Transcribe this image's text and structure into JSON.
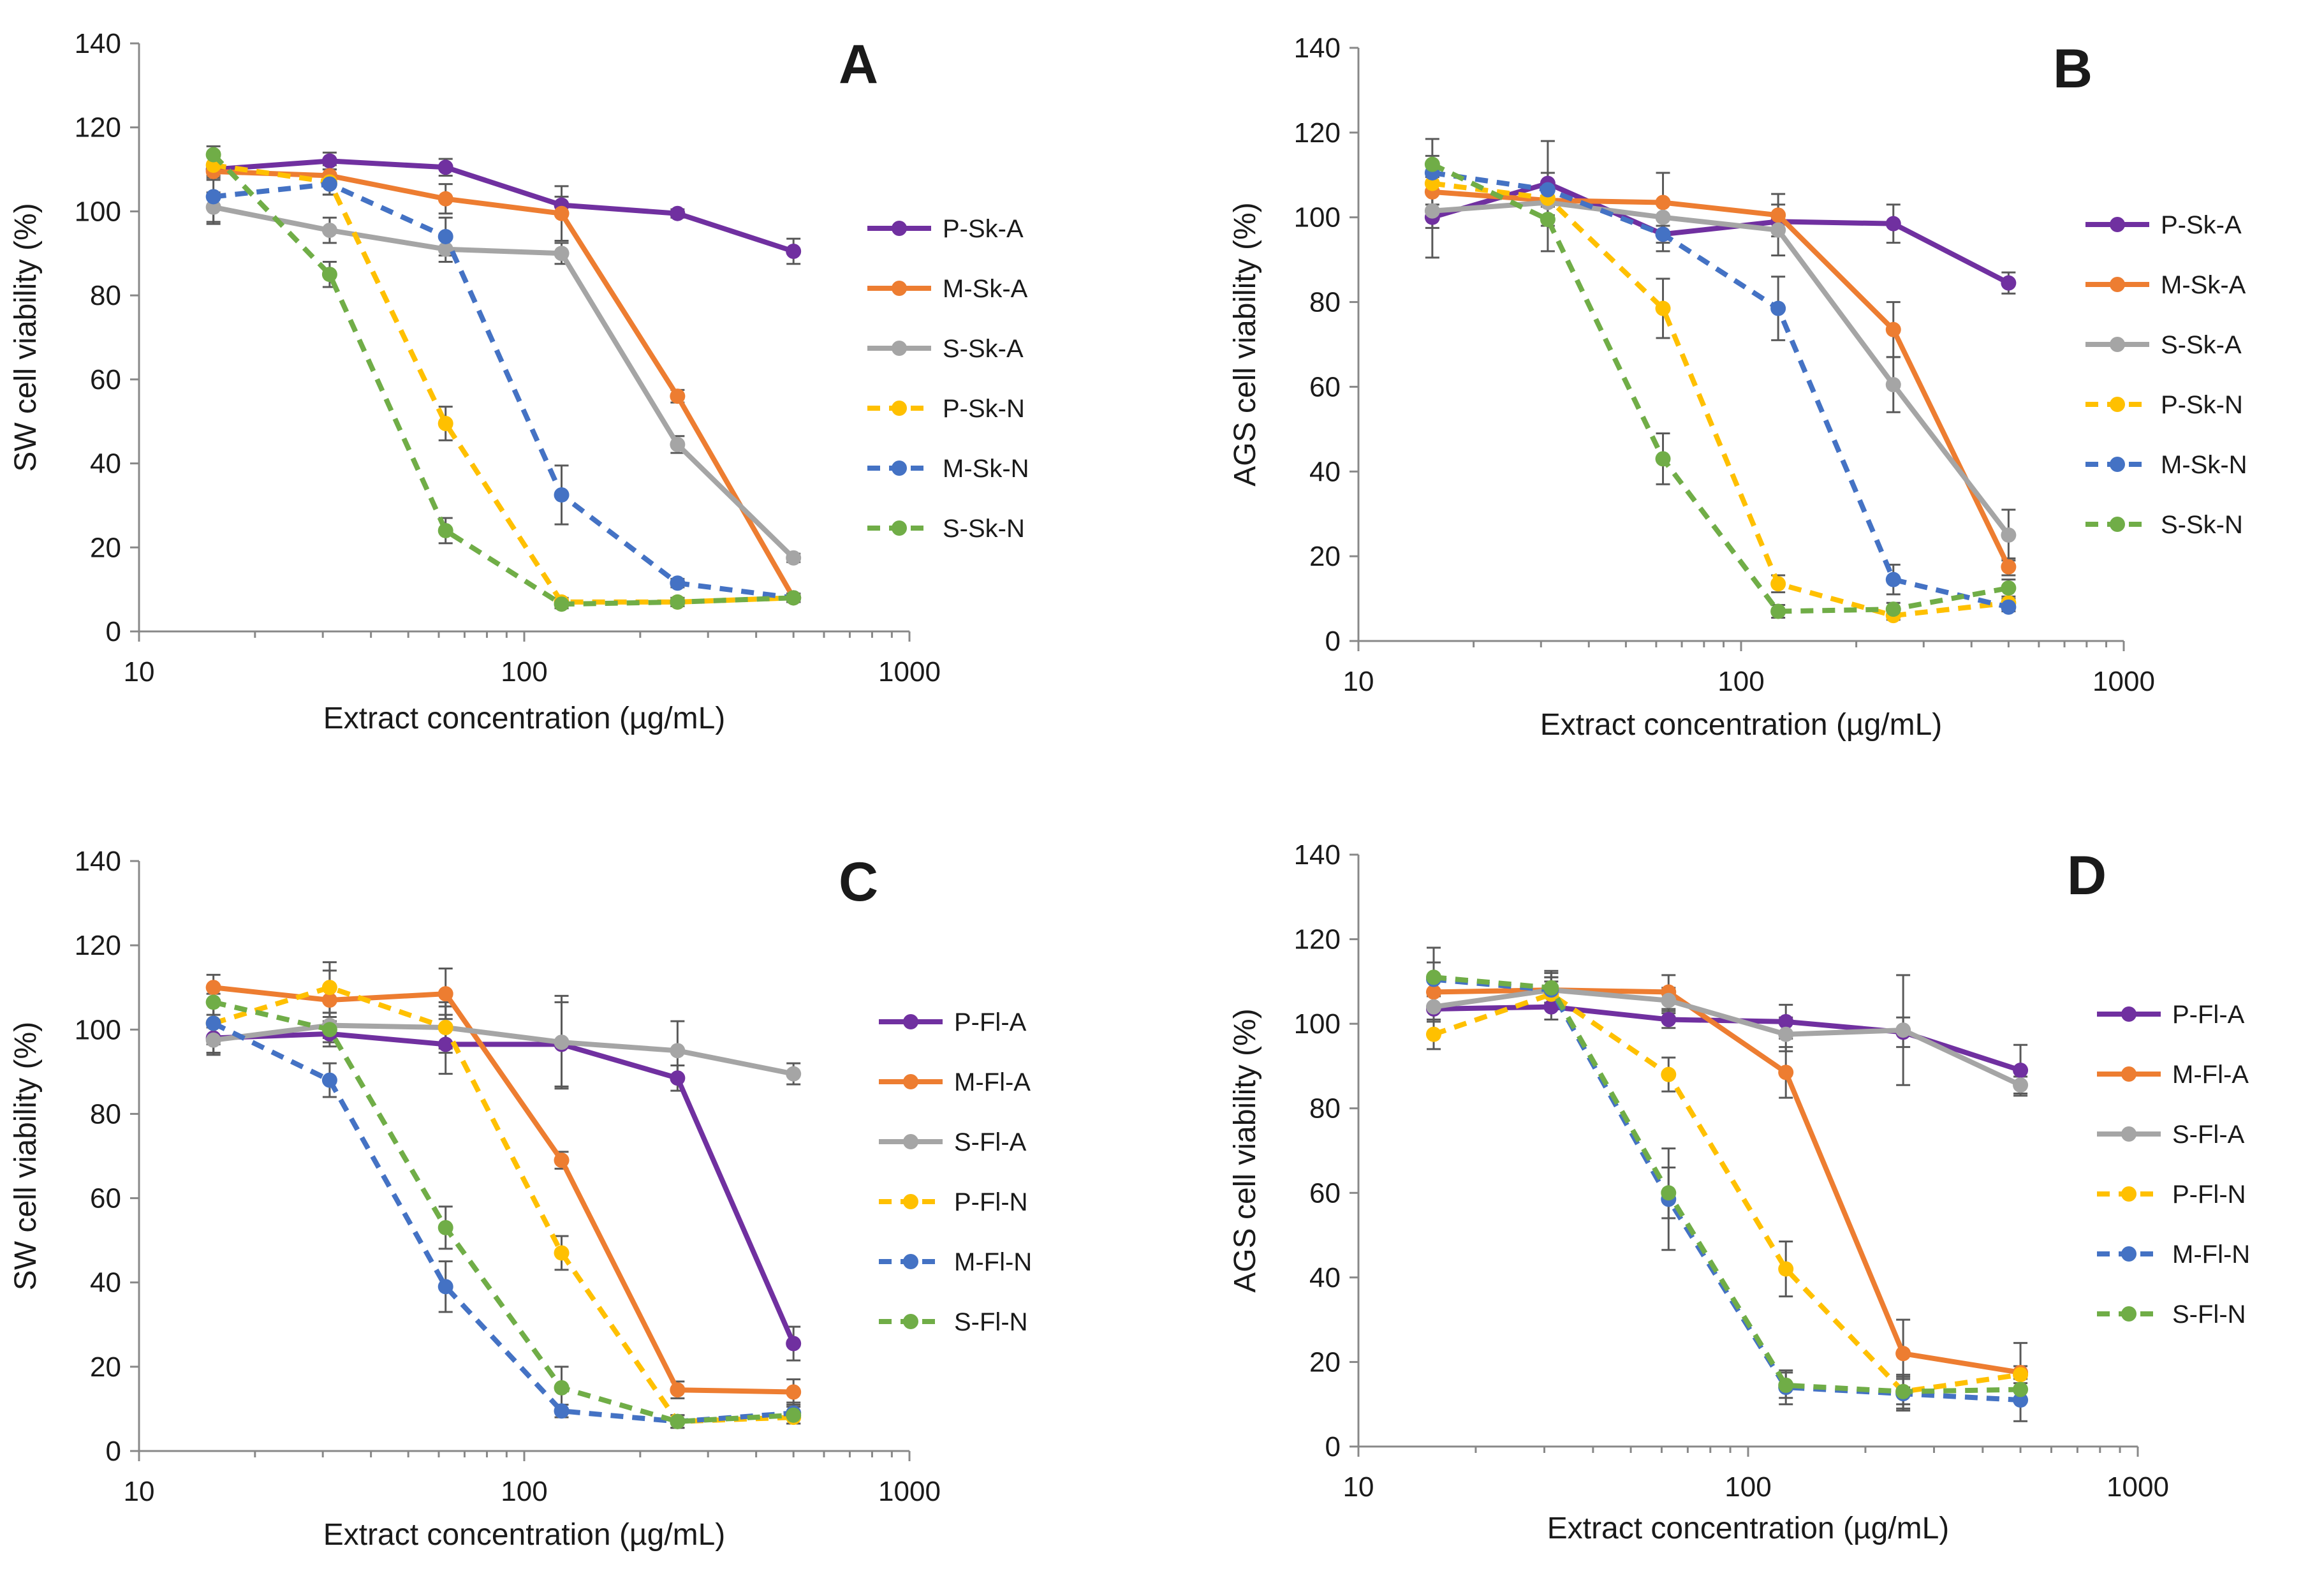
{
  "figure": {
    "colors": {
      "P-A": "#7030a0",
      "M-A": "#ed7d31",
      "S-A": "#a5a5a5",
      "P-N": "#ffc000",
      "M-N": "#4472c4",
      "S-N": "#70ad47",
      "axis": "#888888",
      "errorbar": "#595959"
    }
  },
  "chart_data": [
    {
      "type": "line",
      "panel": "A",
      "xscale": "log",
      "xlim": [
        10,
        1000
      ],
      "ylim": [
        0,
        140
      ],
      "xticks": [
        10,
        100,
        1000
      ],
      "xtick_labels": [
        "10",
        "100",
        "1000"
      ],
      "yticks": [
        0,
        20,
        40,
        60,
        80,
        100,
        120,
        140
      ],
      "ytick_labels": [
        "0",
        "20",
        "40",
        "60",
        "80",
        "100",
        "120",
        "140"
      ],
      "xlabel": "Extract concentration (µg/mL)",
      "ylabel": "SW cell viability (%)",
      "x": [
        15.6,
        31.25,
        62.5,
        125,
        250,
        500
      ],
      "legend_position": "right",
      "series": [
        {
          "name": "P-Sk-A",
          "style": "solid",
          "colorKey": "P-A",
          "values": [
            110,
            112,
            110.5,
            101.5,
            99.5,
            90.5
          ],
          "errors": [
            1.5,
            2,
            2,
            2,
            1,
            3
          ]
        },
        {
          "name": "M-Sk-A",
          "style": "solid",
          "colorKey": "M-A",
          "values": [
            109.5,
            108.5,
            103,
            99.5,
            56,
            8
          ],
          "errors": [
            2,
            2.5,
            3.5,
            6.5,
            1.5,
            1
          ]
        },
        {
          "name": "S-Sk-A",
          "style": "solid",
          "colorKey": "S-A",
          "values": [
            101,
            95.5,
            91,
            90,
            44.5,
            17.5
          ],
          "errors": [
            3.5,
            3,
            3,
            2.5,
            2,
            1
          ]
        },
        {
          "name": "P-Sk-N",
          "style": "dashed",
          "colorKey": "P-N",
          "values": [
            111,
            107,
            49.5,
            7,
            7,
            8
          ],
          "errors": [
            3,
            3,
            4,
            1,
            1,
            1
          ]
        },
        {
          "name": "M-Sk-N",
          "style": "dashed",
          "colorKey": "M-N",
          "values": [
            103.5,
            106.5,
            94,
            32.5,
            11.5,
            8
          ],
          "errors": [
            6.5,
            2.5,
            4.5,
            7,
            1,
            1
          ]
        },
        {
          "name": "S-Sk-N",
          "style": "dashed",
          "colorKey": "S-N",
          "values": [
            113.5,
            85,
            24,
            6.5,
            7,
            8
          ],
          "errors": [
            2,
            3,
            3,
            1,
            1,
            1
          ]
        }
      ]
    },
    {
      "type": "line",
      "panel": "B",
      "xscale": "log",
      "xlim": [
        10,
        1000
      ],
      "ylim": [
        0,
        140
      ],
      "xticks": [
        10,
        100,
        1000
      ],
      "xtick_labels": [
        "10",
        "100",
        "1000"
      ],
      "yticks": [
        0,
        20,
        40,
        60,
        80,
        100,
        120,
        140
      ],
      "ytick_labels": [
        "0",
        "20",
        "40",
        "60",
        "80",
        "100",
        "120",
        "140"
      ],
      "xlabel": "Extract concentration (µg/mL)",
      "ylabel": "AGS cell viability (%)",
      "x": [
        15.6,
        31.25,
        62.5,
        125,
        250,
        500
      ],
      "legend_position": "right",
      "series": [
        {
          "name": "P-Sk-A",
          "style": "solid",
          "colorKey": "P-A",
          "values": [
            100,
            108,
            96,
            99,
            98.5,
            84.5
          ],
          "errors": [
            9.5,
            10,
            2,
            2,
            4.5,
            2.5
          ]
        },
        {
          "name": "M-Sk-A",
          "style": "solid",
          "colorKey": "M-A",
          "values": [
            106,
            104,
            103.5,
            100.5,
            73.5,
            17.5
          ],
          "errors": [
            4,
            4,
            7,
            5,
            6.5,
            2
          ]
        },
        {
          "name": "S-Sk-A",
          "style": "solid",
          "colorKey": "S-A",
          "values": [
            101.5,
            103.5,
            100,
            97,
            60.5,
            25
          ],
          "errors": [
            4,
            4,
            4,
            6,
            6.5,
            6
          ]
        },
        {
          "name": "P-Sk-N",
          "style": "dashed",
          "colorKey": "P-N",
          "values": [
            108,
            104.5,
            78.5,
            13.5,
            6,
            9
          ],
          "errors": [
            5,
            4,
            7,
            2,
            1,
            1
          ]
        },
        {
          "name": "M-Sk-N",
          "style": "dashed",
          "colorKey": "M-N",
          "values": [
            110.5,
            106.5,
            96,
            78.5,
            14.5,
            8
          ],
          "errors": [
            4,
            4,
            4,
            7.5,
            3.5,
            1
          ]
        },
        {
          "name": "S-Sk-N",
          "style": "dashed",
          "colorKey": "S-N",
          "values": [
            112.5,
            99.5,
            43,
            7,
            7.5,
            12.5
          ],
          "errors": [
            6,
            7.5,
            6,
            1.5,
            1.5,
            2
          ]
        }
      ]
    },
    {
      "type": "line",
      "panel": "C",
      "xscale": "log",
      "xlim": [
        10,
        1000
      ],
      "ylim": [
        0,
        140
      ],
      "xticks": [
        10,
        100,
        1000
      ],
      "xtick_labels": [
        "10",
        "100",
        "1000"
      ],
      "yticks": [
        0,
        20,
        40,
        60,
        80,
        100,
        120,
        140
      ],
      "ytick_labels": [
        "0",
        "20",
        "40",
        "60",
        "80",
        "100",
        "120",
        "140"
      ],
      "xlabel": "Extract concentration (µg/mL)",
      "ylabel": "SW cell viability (%)",
      "x": [
        15.6,
        31.25,
        62.5,
        125,
        250,
        500
      ],
      "legend_position": "right",
      "series": [
        {
          "name": "P-Fl-A",
          "style": "solid",
          "colorKey": "P-A",
          "values": [
            98,
            99,
            96.5,
            96.5,
            88.5,
            25.5
          ],
          "errors": [
            4,
            3,
            7,
            10,
            3,
            4
          ]
        },
        {
          "name": "M-Fl-A",
          "style": "solid",
          "colorKey": "M-A",
          "values": [
            110,
            107,
            108.5,
            69,
            14.5,
            14
          ],
          "errors": [
            3,
            7,
            6,
            2,
            2,
            3
          ]
        },
        {
          "name": "S-Fl-A",
          "style": "solid",
          "colorKey": "S-A",
          "values": [
            97.5,
            101,
            100.5,
            97,
            95,
            89.5
          ],
          "errors": [
            3,
            3,
            5,
            11,
            7,
            2.5
          ]
        },
        {
          "name": "P-Fl-N",
          "style": "dashed",
          "colorKey": "P-N",
          "values": [
            101.5,
            110,
            100.5,
            47,
            7,
            8
          ],
          "errors": [
            5,
            6,
            6,
            4,
            1.5,
            1.5
          ]
        },
        {
          "name": "M-Fl-N",
          "style": "dashed",
          "colorKey": "M-N",
          "values": [
            101.5,
            88,
            39,
            9.5,
            7,
            9
          ],
          "errors": [
            7,
            4,
            6,
            1.5,
            1.5,
            2.5
          ]
        },
        {
          "name": "S-Fl-N",
          "style": "dashed",
          "colorKey": "S-N",
          "values": [
            106.5,
            100,
            53,
            15,
            7,
            8.5
          ],
          "errors": [
            3,
            3,
            5,
            5,
            1.5,
            2
          ]
        }
      ]
    },
    {
      "type": "line",
      "panel": "D",
      "xscale": "log",
      "xlim": [
        10,
        1000
      ],
      "ylim": [
        0,
        140
      ],
      "xticks": [
        10,
        100,
        1000
      ],
      "xtick_labels": [
        "10",
        "100",
        "1000"
      ],
      "yticks": [
        0,
        20,
        40,
        60,
        80,
        100,
        120,
        140
      ],
      "ytick_labels": [
        "0",
        "20",
        "40",
        "60",
        "80",
        "100",
        "120",
        "140"
      ],
      "xlabel": "Extract concentration (µg/mL)",
      "ylabel": "AGS cell viability (%)",
      "x": [
        15.6,
        31.25,
        62.5,
        125,
        250,
        500
      ],
      "legend_position": "right",
      "series": [
        {
          "name": "P-Fl-A",
          "style": "solid",
          "colorKey": "P-A",
          "values": [
            103.5,
            104,
            101,
            100.5,
            98,
            89
          ],
          "errors": [
            3,
            3,
            2,
            4,
            3.5,
            6
          ]
        },
        {
          "name": "M-Fl-A",
          "style": "solid",
          "colorKey": "M-A",
          "values": [
            107.5,
            108,
            107.5,
            88.5,
            22,
            17.5
          ],
          "errors": [
            3,
            3,
            4,
            6,
            8,
            7
          ]
        },
        {
          "name": "S-Fl-A",
          "style": "solid",
          "colorKey": "S-A",
          "values": [
            104,
            108,
            105.5,
            97.5,
            98.5,
            85.5
          ],
          "errors": [
            3,
            4,
            3,
            4,
            13,
            2
          ]
        },
        {
          "name": "P-Fl-N",
          "style": "dashed",
          "colorKey": "P-N",
          "values": [
            97.5,
            107,
            88,
            42,
            13,
            17
          ],
          "errors": [
            3.5,
            3,
            4,
            6.5,
            4,
            2
          ]
        },
        {
          "name": "M-Fl-N",
          "style": "dashed",
          "colorKey": "M-N",
          "values": [
            110.5,
            108,
            58.5,
            14,
            12.5,
            11
          ],
          "errors": [
            4,
            3,
            12,
            4,
            4,
            5
          ]
        },
        {
          "name": "S-Fl-N",
          "style": "dashed",
          "colorKey": "S-N",
          "values": [
            111,
            108.5,
            60,
            14.5,
            13,
            13.5
          ],
          "errors": [
            7,
            4,
            6,
            3,
            3,
            3
          ]
        }
      ]
    }
  ]
}
